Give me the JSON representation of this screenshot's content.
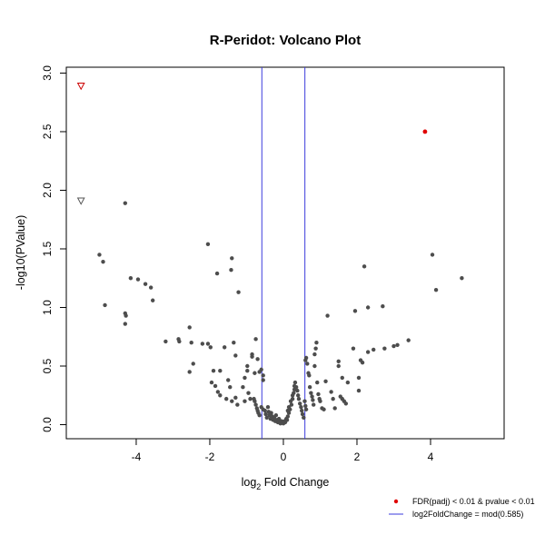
{
  "chart_data": {
    "type": "scatter",
    "title": "R-Peridot: Volcano Plot",
    "xlabel_main": "log",
    "xlabel_sub": "2",
    "xlabel_rest": " Fold Change",
    "ylabel": "-log10(PValue)",
    "xlim": [
      -5.9,
      6.0
    ],
    "ylim": [
      -0.12,
      3.05
    ],
    "x_ticks": [
      -4,
      -2,
      0,
      2,
      4
    ],
    "y_ticks": [
      0.0,
      0.5,
      1.0,
      1.5,
      2.0,
      2.5,
      3.0
    ],
    "x_tick_labels": [
      "-4",
      "-2",
      "0",
      "2",
      "4"
    ],
    "y_tick_labels": [
      "0.0",
      "0.5",
      "1.0",
      "1.5",
      "2.0",
      "2.5",
      "3.0"
    ],
    "vlines": [
      -0.585,
      0.585
    ],
    "vline_color": "#3b3bdc",
    "point_color": "#4d4d4d",
    "significant_color": "#e00000",
    "outlier_triangles": [
      {
        "x": -5.5,
        "y": 2.89,
        "color": "#cc0000"
      },
      {
        "x": -5.5,
        "y": 1.91,
        "color": "#555555"
      }
    ],
    "series": [
      {
        "name": "FDR(padj) < 0.01 & pvalue < 0.01",
        "significant": true,
        "points": [
          [
            3.85,
            2.5
          ]
        ]
      },
      {
        "significant": false,
        "points": [
          [
            -4.3,
            1.89
          ],
          [
            -5.0,
            1.45
          ],
          [
            -4.9,
            1.39
          ],
          [
            -4.85,
            1.02
          ],
          [
            -4.3,
            0.95
          ],
          [
            -4.28,
            0.93
          ],
          [
            -4.3,
            0.86
          ],
          [
            -4.15,
            1.25
          ],
          [
            -3.95,
            1.24
          ],
          [
            -3.75,
            1.2
          ],
          [
            -3.6,
            1.17
          ],
          [
            -3.55,
            1.06
          ],
          [
            -3.2,
            0.71
          ],
          [
            -2.85,
            0.73
          ],
          [
            -2.83,
            0.71
          ],
          [
            -2.55,
            0.83
          ],
          [
            -2.5,
            0.7
          ],
          [
            -2.55,
            0.45
          ],
          [
            -2.45,
            0.52
          ],
          [
            -2.2,
            0.69
          ],
          [
            -2.05,
            0.69
          ],
          [
            -1.98,
            0.66
          ],
          [
            -1.9,
            0.46
          ],
          [
            -2.05,
            1.54
          ],
          [
            -1.8,
            1.29
          ],
          [
            -1.4,
            1.42
          ],
          [
            -1.42,
            1.32
          ],
          [
            -1.22,
            1.13
          ],
          [
            -1.95,
            0.36
          ],
          [
            -1.85,
            0.33
          ],
          [
            -1.78,
            0.28
          ],
          [
            -1.72,
            0.25
          ],
          [
            -1.72,
            0.46
          ],
          [
            -1.6,
            0.66
          ],
          [
            -1.55,
            0.22
          ],
          [
            -1.5,
            0.38
          ],
          [
            -1.45,
            0.32
          ],
          [
            -1.4,
            0.2
          ],
          [
            -1.3,
            0.59
          ],
          [
            -1.3,
            0.23
          ],
          [
            -1.25,
            0.17
          ],
          [
            -1.1,
            0.32
          ],
          [
            -1.05,
            0.2
          ],
          [
            -1.35,
            0.7
          ],
          [
            -1.05,
            0.4
          ],
          [
            -0.98,
            0.46
          ],
          [
            -0.98,
            0.5
          ],
          [
            -0.95,
            0.27
          ],
          [
            -0.9,
            0.22
          ],
          [
            -0.85,
            0.58
          ],
          [
            -0.85,
            0.6
          ],
          [
            -0.78,
            0.44
          ],
          [
            -0.75,
            0.73
          ],
          [
            -0.7,
            0.56
          ],
          [
            -0.65,
            0.45
          ],
          [
            -0.6,
            0.47
          ],
          [
            -0.55,
            0.42
          ],
          [
            -0.55,
            0.38
          ],
          [
            -0.8,
            0.22
          ],
          [
            -0.78,
            0.2
          ],
          [
            -0.75,
            0.17
          ],
          [
            -0.72,
            0.14
          ],
          [
            -0.7,
            0.12
          ],
          [
            -0.68,
            0.1
          ],
          [
            -0.65,
            0.08
          ],
          [
            -0.6,
            0.15
          ],
          [
            -0.55,
            0.13
          ],
          [
            -0.5,
            0.12
          ],
          [
            -0.48,
            0.09
          ],
          [
            -0.45,
            0.06
          ],
          [
            -0.42,
            0.15
          ],
          [
            -0.4,
            0.11
          ],
          [
            -0.38,
            0.08
          ],
          [
            -0.35,
            0.05
          ],
          [
            -0.33,
            0.1
          ],
          [
            -0.3,
            0.07
          ],
          [
            -0.28,
            0.04
          ],
          [
            -0.25,
            0.06
          ],
          [
            -0.22,
            0.03
          ],
          [
            -0.2,
            0.08
          ],
          [
            -0.18,
            0.04
          ],
          [
            -0.15,
            0.02
          ],
          [
            -0.12,
            0.05
          ],
          [
            -0.1,
            0.03
          ],
          [
            -0.08,
            0.01
          ],
          [
            -0.05,
            0.03
          ],
          [
            -0.03,
            0.02
          ],
          [
            0.0,
            0.01
          ],
          [
            0.03,
            0.03
          ],
          [
            0.05,
            0.02
          ],
          [
            0.08,
            0.05
          ],
          [
            0.1,
            0.04
          ],
          [
            0.12,
            0.07
          ],
          [
            0.15,
            0.1
          ],
          [
            0.12,
            0.12
          ],
          [
            0.15,
            0.15
          ],
          [
            0.18,
            0.13
          ],
          [
            0.2,
            0.2
          ],
          [
            0.22,
            0.17
          ],
          [
            0.25,
            0.22
          ],
          [
            0.25,
            0.25
          ],
          [
            0.28,
            0.27
          ],
          [
            0.3,
            0.3
          ],
          [
            0.3,
            0.33
          ],
          [
            0.32,
            0.36
          ],
          [
            0.35,
            0.32
          ],
          [
            0.38,
            0.29
          ],
          [
            0.4,
            0.25
          ],
          [
            0.42,
            0.22
          ],
          [
            0.45,
            0.18
          ],
          [
            0.48,
            0.15
          ],
          [
            0.5,
            0.12
          ],
          [
            0.52,
            0.09
          ],
          [
            0.55,
            0.06
          ],
          [
            0.58,
            0.2
          ],
          [
            0.6,
            0.16
          ],
          [
            0.62,
            0.13
          ],
          [
            0.6,
            0.55
          ],
          [
            0.62,
            0.57
          ],
          [
            0.65,
            0.52
          ],
          [
            0.68,
            0.44
          ],
          [
            0.7,
            0.42
          ],
          [
            0.72,
            0.32
          ],
          [
            0.75,
            0.27
          ],
          [
            0.78,
            0.24
          ],
          [
            0.8,
            0.21
          ],
          [
            0.82,
            0.17
          ],
          [
            0.85,
            0.5
          ],
          [
            0.85,
            0.6
          ],
          [
            0.88,
            0.65
          ],
          [
            0.9,
            0.7
          ],
          [
            0.92,
            0.36
          ],
          [
            0.95,
            0.26
          ],
          [
            0.98,
            0.22
          ],
          [
            1.0,
            0.2
          ],
          [
            1.05,
            0.14
          ],
          [
            1.1,
            0.13
          ],
          [
            1.15,
            0.37
          ],
          [
            1.2,
            0.93
          ],
          [
            1.3,
            0.28
          ],
          [
            1.35,
            0.22
          ],
          [
            1.4,
            0.14
          ],
          [
            1.5,
            0.54
          ],
          [
            1.5,
            0.5
          ],
          [
            1.55,
            0.24
          ],
          [
            1.6,
            0.4
          ],
          [
            1.6,
            0.22
          ],
          [
            1.65,
            0.2
          ],
          [
            1.7,
            0.18
          ],
          [
            1.75,
            0.36
          ],
          [
            1.9,
            0.65
          ],
          [
            1.95,
            0.97
          ],
          [
            2.05,
            0.4
          ],
          [
            2.05,
            0.29
          ],
          [
            2.1,
            0.55
          ],
          [
            2.15,
            0.53
          ],
          [
            2.2,
            1.35
          ],
          [
            2.3,
            0.62
          ],
          [
            2.3,
            1.0
          ],
          [
            2.45,
            0.64
          ],
          [
            2.7,
            1.01
          ],
          [
            2.75,
            0.65
          ],
          [
            3.0,
            0.67
          ],
          [
            3.1,
            0.68
          ],
          [
            3.4,
            0.72
          ],
          [
            4.05,
            1.45
          ],
          [
            4.15,
            1.15
          ],
          [
            4.85,
            1.25
          ]
        ]
      }
    ],
    "legend": {
      "placement": "bottom-right",
      "entries": [
        {
          "label": "FDR(padj) < 0.01 & pvalue < 0.01",
          "kind": "point",
          "color": "#e00000"
        },
        {
          "label": "log2FoldChange = mod(0.585)",
          "kind": "line",
          "color": "#3b3bdc"
        }
      ]
    }
  }
}
